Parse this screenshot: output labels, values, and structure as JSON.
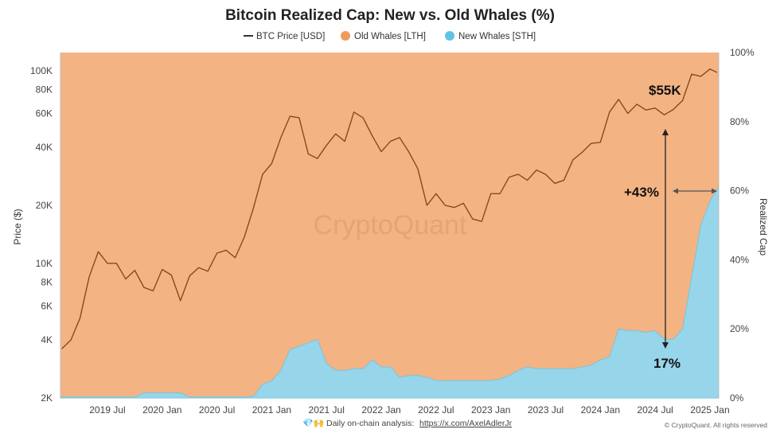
{
  "chart_data": {
    "type": "area",
    "title": "Bitcoin Realized Cap: New vs. Old Whales (%)",
    "legend": [
      "BTC Price [USD]",
      "Old Whales [LTH]",
      "New Whales [STH]"
    ],
    "legend_placement": "top",
    "ylabel_left": "Price ($)",
    "ylabel_right": "Realized Cap",
    "y_left_scale": "log",
    "y_left_range": [
      2000,
      120000
    ],
    "y_left_ticks": [
      "2K",
      "4K",
      "6K",
      "8K",
      "10K",
      "20K",
      "40K",
      "60K",
      "80K",
      "100K"
    ],
    "y_left_tick_values": [
      2000,
      4000,
      6000,
      8000,
      10000,
      20000,
      40000,
      60000,
      80000,
      100000
    ],
    "y_right_range": [
      0,
      100
    ],
    "y_right_ticks": [
      "0%",
      "20%",
      "40%",
      "60%",
      "80%",
      "100%"
    ],
    "x_ticks": [
      "2019 Jul",
      "2020 Jan",
      "2020 Jul",
      "2021 Jan",
      "2021 Jul",
      "2022 Jan",
      "2022 Jul",
      "2023 Jan",
      "2023 Jul",
      "2024 Jan",
      "2024 Jul",
      "2025 Jan"
    ],
    "x_tick_dates": [
      "2019-07",
      "2020-01",
      "2020-07",
      "2021-01",
      "2021-07",
      "2022-01",
      "2022-07",
      "2023-01",
      "2023-07",
      "2024-01",
      "2024-07",
      "2025-01"
    ],
    "x_range": [
      "2019-02",
      "2025-02"
    ],
    "colors": {
      "price": "#8b4a1c",
      "old_whales": "#f3b383",
      "new_whales": "#97d5ea"
    },
    "dates": [
      "2019-02",
      "2019-03",
      "2019-04",
      "2019-05",
      "2019-06",
      "2019-07",
      "2019-08",
      "2019-09",
      "2019-10",
      "2019-11",
      "2019-12",
      "2020-01",
      "2020-02",
      "2020-03",
      "2020-04",
      "2020-05",
      "2020-06",
      "2020-07",
      "2020-08",
      "2020-09",
      "2020-10",
      "2020-11",
      "2020-12",
      "2021-01",
      "2021-02",
      "2021-03",
      "2021-04",
      "2021-05",
      "2021-06",
      "2021-07",
      "2021-08",
      "2021-09",
      "2021-10",
      "2021-11",
      "2021-12",
      "2022-01",
      "2022-02",
      "2022-03",
      "2022-04",
      "2022-05",
      "2022-06",
      "2022-07",
      "2022-08",
      "2022-09",
      "2022-10",
      "2022-11",
      "2022-12",
      "2023-01",
      "2023-02",
      "2023-03",
      "2023-04",
      "2023-05",
      "2023-06",
      "2023-07",
      "2023-08",
      "2023-09",
      "2023-10",
      "2023-11",
      "2023-12",
      "2024-01",
      "2024-02",
      "2024-03",
      "2024-04",
      "2024-05",
      "2024-06",
      "2024-07",
      "2024-08",
      "2024-09",
      "2024-10",
      "2024-11",
      "2024-12",
      "2025-01",
      "2025-02"
    ],
    "series": [
      {
        "name": "BTC Price [USD]",
        "axis": "left",
        "values": [
          3600,
          4000,
          5200,
          8500,
          11500,
          10000,
          10000,
          8300,
          9200,
          7500,
          7200,
          9300,
          8700,
          6400,
          8600,
          9500,
          9100,
          11300,
          11700,
          10700,
          13700,
          19400,
          29000,
          33000,
          45000,
          58000,
          57000,
          37000,
          35000,
          41000,
          47000,
          43000,
          61000,
          57000,
          46000,
          38000,
          43000,
          45000,
          38000,
          31000,
          20000,
          23000,
          20000,
          19500,
          20500,
          17000,
          16500,
          23000,
          23000,
          28000,
          29000,
          27000,
          30500,
          29000,
          26000,
          27000,
          34500,
          37700,
          42000,
          42500,
          61000,
          71000,
          60000,
          67000,
          62500,
          64000,
          59000,
          63000,
          70000,
          96000,
          93500,
          102000,
          98000
        ]
      },
      {
        "name": "New Whales [STH]",
        "axis": "right",
        "values": [
          0.3,
          0.3,
          0.3,
          0.3,
          0.3,
          0.3,
          0.3,
          0.3,
          0.3,
          1.5,
          1.5,
          1.5,
          1.5,
          1.5,
          0.3,
          0.3,
          0.3,
          0.3,
          0.3,
          0.3,
          0.3,
          0.5,
          4,
          5,
          8,
          14,
          15,
          16,
          17,
          10,
          8,
          8,
          8.5,
          8.5,
          11,
          9,
          9,
          6,
          6.5,
          6.5,
          6,
          5,
          5,
          5,
          5,
          5,
          5,
          5,
          5.5,
          6.5,
          8,
          9,
          8.5,
          8.5,
          8.5,
          8.5,
          8.5,
          9,
          9.5,
          11,
          12,
          20,
          19.5,
          19.5,
          19,
          19.5,
          17,
          17,
          20,
          35,
          50,
          57,
          61
        ]
      },
      {
        "name": "Old Whales [LTH]",
        "axis": "right",
        "note_values": "100 minus New Whales"
      }
    ],
    "annotations": [
      "$55K",
      "+43%",
      "17%"
    ],
    "watermark": "CryptoQuant"
  },
  "footer": {
    "text": "Daily on-chain analysis:",
    "link": "https://x.com/AxelAdlerJr",
    "copyright": "© CryptoQuant. All rights reserved"
  }
}
